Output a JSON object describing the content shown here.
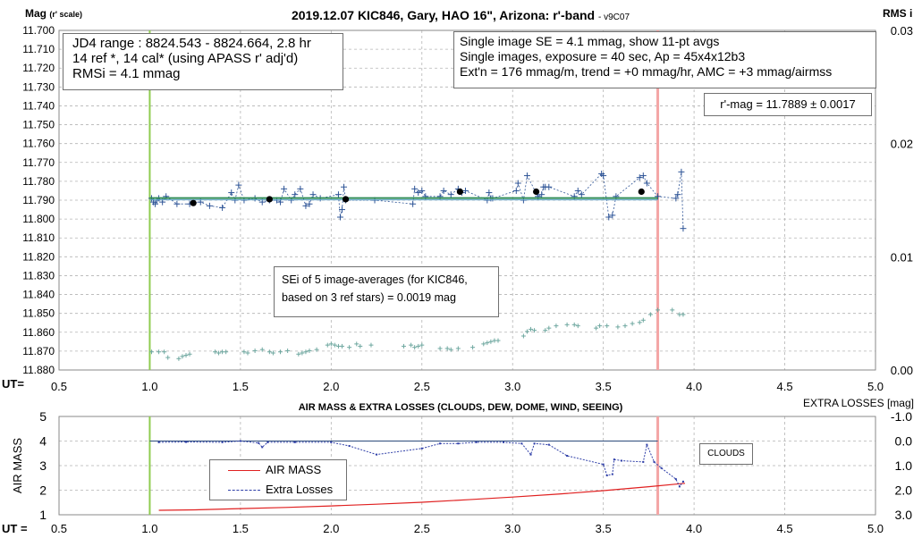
{
  "upper": {
    "title": "2019.12.07 KIC846, Gary, HAO 16\", Arizona: r'-band",
    "version": "- v9C07",
    "ylabel_main": "Mag",
    "ylabel_sub": "(r' scale)",
    "rlabel": "RMS i",
    "ut_label": "UT=",
    "extra_losses_label": "EXTRA LOSSES [mag]",
    "box_jd": [
      "JD4 range : 8824.543 - 8824.664,  2.8  hr",
      "14 ref *, 14 cal* (using APASS r' adj'd)",
      "RMSi = 4.1 mmag"
    ],
    "box_se": [
      "Single image SE = 4.1 mmag, show  11-pt avgs",
      "Single images, exposure = 40 sec, Ap = 45x4x12b3",
      "Ext'n = 176 mmag/m, trend =  +0 mmag/hr, AMC = +3 mmag/airmss"
    ],
    "box_rmag": "r'-mag = 11.7889 ± 0.0017",
    "box_sei": [
      "SEi of 5 image-averages (for KIC846,",
      "based on 3 ref stars) = 0.0019 mag"
    ]
  },
  "lower": {
    "title": "AIR MASS & EXTRA LOSSES (CLOUDS, DEW, DOME, WIND, SEEING)",
    "ylabel": "AIR MASS",
    "ut_label": "UT =",
    "clouds_label": "CLOUDS",
    "legend": [
      "AIR MASS",
      "Extra Losses"
    ]
  },
  "colors": {
    "data_series": "#2f5597",
    "rms_series": "#6fa8a0",
    "fit_line": "#2e8b57",
    "airmass": "#e02020",
    "green_marker": "#8fcc50",
    "red_marker": "#f4a6a6",
    "avg_points": "#000000",
    "grid": "#b4b4b4"
  },
  "chart_data": [
    {
      "type": "scatter",
      "title": "2019.12.07 KIC846, Gary, HAO 16\", Arizona: r'-band",
      "xlabel": "UT=",
      "ylabel": "Mag (r' scale)",
      "y2label": "RMS i",
      "xlim": [
        0.5,
        5.0
      ],
      "ylim": [
        11.88,
        11.7
      ],
      "y_inverted": true,
      "y2lim": [
        0.0,
        0.03
      ],
      "x_ticks": [
        "0.5",
        "1.0",
        "1.5",
        "2.0",
        "2.5",
        "3.0",
        "3.5",
        "4.0",
        "4.5",
        "5.0"
      ],
      "y_ticks": [
        "11.700",
        "11.710",
        "11.720",
        "11.730",
        "11.740",
        "11.750",
        "11.760",
        "11.770",
        "11.780",
        "11.790",
        "11.800",
        "11.810",
        "11.820",
        "11.830",
        "11.840",
        "11.850",
        "11.860",
        "11.870",
        "11.880"
      ],
      "y2_ticks": [
        "0.03",
        "0.02",
        "0.01",
        "0.00"
      ],
      "grid": true,
      "vertical_markers": [
        1.0,
        3.8
      ],
      "series": [
        {
          "style": "crosses with dashed line",
          "x": [
            1.01,
            1.02,
            1.03,
            1.04,
            1.05,
            1.07,
            1.09,
            1.15,
            1.22,
            1.28,
            1.33,
            1.4,
            1.45,
            1.47,
            1.49,
            1.52,
            1.58,
            1.62,
            1.66,
            1.7,
            1.72,
            1.74,
            1.78,
            1.8,
            1.83,
            1.86,
            1.88,
            1.9,
            1.94,
            2.04,
            2.05,
            2.06,
            2.07,
            2.08,
            2.24,
            2.45,
            2.46,
            2.48,
            2.5,
            2.52,
            2.6,
            2.62,
            2.66,
            2.7,
            2.72,
            2.74,
            2.86,
            2.87,
            2.88,
            2.89,
            3.02,
            3.03,
            3.06,
            3.08,
            3.14,
            3.16,
            3.17,
            3.18,
            3.2,
            3.34,
            3.36,
            3.38,
            3.49,
            3.5,
            3.53,
            3.55,
            3.57,
            3.7,
            3.72,
            3.74,
            3.8,
            3.9,
            3.91,
            3.93,
            3.94
          ],
          "y": [
            11.789,
            11.791,
            11.792,
            11.79,
            11.789,
            11.791,
            11.788,
            11.792,
            11.792,
            11.791,
            11.793,
            11.794,
            11.786,
            11.79,
            11.782,
            11.79,
            11.789,
            11.791,
            11.79,
            11.79,
            11.791,
            11.784,
            11.79,
            11.787,
            11.784,
            11.793,
            11.792,
            11.787,
            11.789,
            11.787,
            11.799,
            11.795,
            11.783,
            11.79,
            11.79,
            11.792,
            11.784,
            11.786,
            11.785,
            11.788,
            11.788,
            11.785,
            11.787,
            11.784,
            11.786,
            11.785,
            11.79,
            11.786,
            11.789,
            11.789,
            11.785,
            11.781,
            11.79,
            11.777,
            11.788,
            11.787,
            11.783,
            11.783,
            11.783,
            11.788,
            11.785,
            11.787,
            11.776,
            11.777,
            11.799,
            11.798,
            11.788,
            11.778,
            11.777,
            11.781,
            11.788,
            11.789,
            11.787,
            11.775,
            11.805
          ]
        },
        {
          "style": "large dots (11-pt avgs)",
          "x": [
            1.24,
            1.66,
            2.08,
            2.71,
            3.13,
            3.71
          ],
          "y": [
            11.7915,
            11.7895,
            11.7895,
            11.7855,
            11.7855,
            11.7855
          ]
        },
        {
          "style": "horizontal fit",
          "x": [
            1.0,
            3.8
          ],
          "y": [
            11.7889,
            11.7889
          ]
        },
        {
          "style": "small crosses (RMS i, right axis)",
          "x": [
            1.01,
            1.05,
            1.08,
            1.1,
            1.16,
            1.18,
            1.2,
            1.22,
            1.36,
            1.38,
            1.4,
            1.42,
            1.52,
            1.54,
            1.58,
            1.62,
            1.66,
            1.68,
            1.72,
            1.76,
            1.82,
            1.84,
            1.86,
            1.88,
            1.92,
            1.98,
            2.0,
            2.02,
            2.04,
            2.06,
            2.1,
            2.14,
            2.16,
            2.22,
            2.4,
            2.44,
            2.46,
            2.48,
            2.5,
            2.6,
            2.64,
            2.66,
            2.7,
            2.78,
            2.84,
            2.86,
            2.88,
            2.9,
            2.92,
            3.06,
            3.08,
            3.1,
            3.12,
            3.18,
            3.2,
            3.24,
            3.3,
            3.34,
            3.36,
            3.46,
            3.48,
            3.52,
            3.58,
            3.62,
            3.66,
            3.7,
            3.72,
            3.76,
            3.8,
            3.88,
            3.92,
            3.94
          ],
          "y": [
            0.0016,
            0.0016,
            0.0016,
            0.0011,
            0.001,
            0.0012,
            0.0013,
            0.0014,
            0.0016,
            0.0015,
            0.0016,
            0.0016,
            0.0016,
            0.0015,
            0.0017,
            0.0018,
            0.0016,
            0.0015,
            0.0016,
            0.0017,
            0.0014,
            0.0015,
            0.0016,
            0.0017,
            0.0018,
            0.0022,
            0.0023,
            0.0022,
            0.0021,
            0.0021,
            0.002,
            0.0023,
            0.0021,
            0.0022,
            0.0021,
            0.0022,
            0.002,
            0.0021,
            0.0022,
            0.0019,
            0.0019,
            0.0018,
            0.0019,
            0.002,
            0.0023,
            0.0024,
            0.0025,
            0.0026,
            0.0026,
            0.003,
            0.0034,
            0.0036,
            0.0035,
            0.0035,
            0.0037,
            0.0039,
            0.004,
            0.004,
            0.0039,
            0.0037,
            0.0039,
            0.0039,
            0.0038,
            0.0039,
            0.0041,
            0.0042,
            0.0044,
            0.0049,
            0.0053,
            0.0053,
            0.0049,
            0.0049
          ]
        }
      ]
    },
    {
      "type": "line",
      "title": "AIR MASS & EXTRA LOSSES (CLOUDS, DEW, DOME, WIND, SEEING)",
      "xlabel": "UT =",
      "ylabel": "AIR MASS",
      "y2label": "EXTRA LOSSES [mag]",
      "xlim": [
        0.5,
        5.0
      ],
      "ylim": [
        1,
        5
      ],
      "y2lim": [
        3.0,
        -1.0
      ],
      "x_ticks": [
        "0.5",
        "1.0",
        "1.5",
        "2.0",
        "2.5",
        "3.0",
        "3.5",
        "4.0",
        "4.5",
        "5.0"
      ],
      "y_ticks": [
        "5",
        "4",
        "3",
        "2",
        "1"
      ],
      "y2_ticks": [
        "-1.0",
        "0.0",
        "1.0",
        "2.0",
        "3.0"
      ],
      "legend_position": "lower-left",
      "series": [
        {
          "name": "AIR MASS",
          "x": [
            1.05,
            1.25,
            1.5,
            1.75,
            2.0,
            2.25,
            2.5,
            2.75,
            3.0,
            3.25,
            3.5,
            3.75,
            3.95
          ],
          "y": [
            1.18,
            1.2,
            1.25,
            1.3,
            1.36,
            1.43,
            1.51,
            1.61,
            1.72,
            1.84,
            1.98,
            2.14,
            2.28
          ]
        },
        {
          "name": "Extra Losses",
          "x": [
            1.05,
            1.2,
            1.4,
            1.5,
            1.6,
            1.62,
            1.65,
            1.8,
            2.0,
            2.1,
            2.25,
            2.5,
            2.6,
            2.7,
            2.8,
            2.95,
            3.05,
            3.1,
            3.12,
            3.2,
            3.3,
            3.5,
            3.52,
            3.55,
            3.56,
            3.6,
            3.72,
            3.74,
            3.78,
            3.82,
            3.9,
            3.92,
            3.94
          ],
          "y": [
            0.05,
            0.04,
            0.05,
            0.0,
            0.08,
            0.25,
            0.05,
            0.05,
            0.05,
            0.2,
            0.55,
            0.3,
            0.1,
            0.1,
            0.05,
            0.05,
            0.1,
            0.55,
            0.1,
            0.15,
            0.6,
            0.95,
            1.4,
            1.35,
            0.75,
            0.8,
            0.85,
            0.15,
            0.85,
            1.1,
            1.55,
            1.85,
            1.65
          ]
        },
        {
          "name": "baseline",
          "x": [
            1.0,
            3.8
          ],
          "y": [
            0.0,
            0.0
          ]
        }
      ]
    }
  ]
}
